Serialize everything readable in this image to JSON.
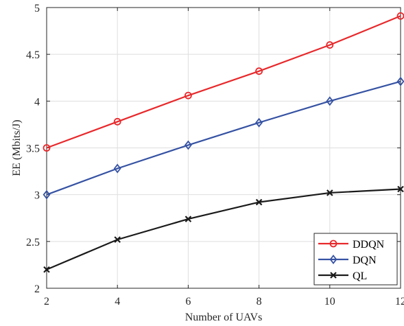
{
  "chart_data": {
    "type": "line",
    "title": "",
    "xlabel": "Number of UAVs",
    "ylabel": "EE (Mbits/J)",
    "x": [
      2,
      4,
      6,
      8,
      10,
      12
    ],
    "xlim": [
      2,
      12
    ],
    "ylim": [
      2,
      5
    ],
    "xticks": [
      "2",
      "4",
      "6",
      "8",
      "10",
      "12"
    ],
    "yticks": [
      "2",
      "2.5",
      "3",
      "3.5",
      "4",
      "4.5",
      "5"
    ],
    "grid": true,
    "legend_position": "bottom-right",
    "series": [
      {
        "name": "DDQN",
        "color": "#e8282b",
        "marker": "circle",
        "values": [
          3.5,
          3.78,
          4.06,
          4.32,
          4.6,
          4.91
        ]
      },
      {
        "name": "DQN",
        "color": "#3552a3",
        "marker": "diamond",
        "values": [
          3.0,
          3.28,
          3.53,
          3.77,
          4.0,
          4.21
        ]
      },
      {
        "name": "QL",
        "color": "#1a1a1a",
        "marker": "x",
        "values": [
          2.2,
          2.52,
          2.74,
          2.92,
          3.02,
          3.06
        ]
      }
    ]
  }
}
